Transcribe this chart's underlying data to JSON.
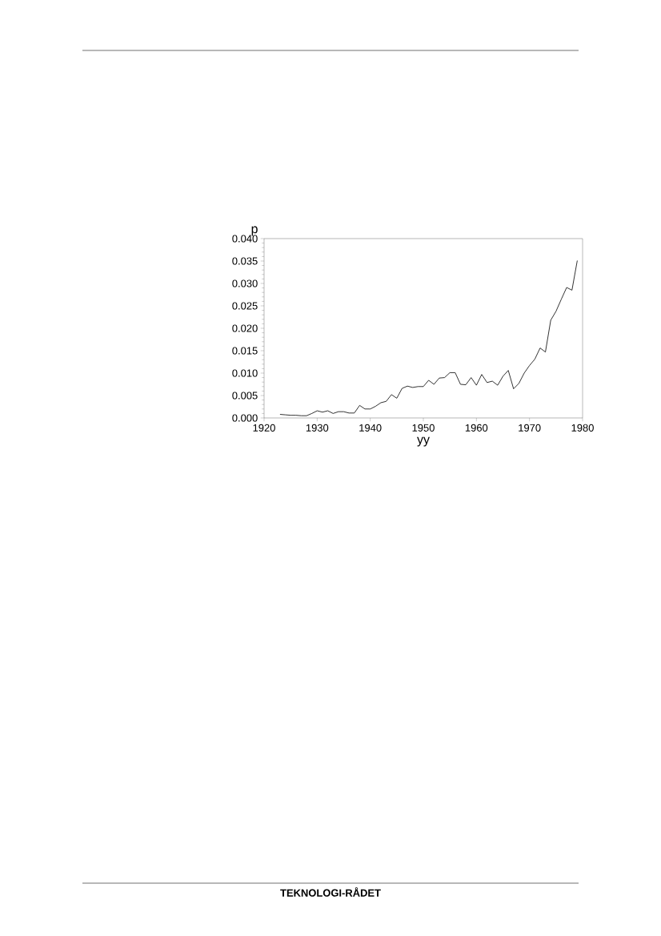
{
  "chart_data": {
    "type": "line",
    "xlabel": "yy",
    "ylabel": "p",
    "x": [
      1923,
      1924,
      1925,
      1926,
      1927,
      1928,
      1929,
      1930,
      1931,
      1932,
      1933,
      1934,
      1935,
      1936,
      1937,
      1938,
      1939,
      1940,
      1941,
      1942,
      1943,
      1944,
      1945,
      1946,
      1947,
      1948,
      1949,
      1950,
      1951,
      1952,
      1953,
      1954,
      1955,
      1956,
      1957,
      1958,
      1959,
      1960,
      1961,
      1962,
      1963,
      1964,
      1965,
      1966,
      1967,
      1968,
      1969,
      1970,
      1971,
      1972,
      1973,
      1974,
      1975,
      1976,
      1977,
      1978,
      1979
    ],
    "values": [
      0.0008,
      0.0007,
      0.0006,
      0.0006,
      0.0005,
      0.0005,
      0.001,
      0.0016,
      0.0013,
      0.0016,
      0.001,
      0.0014,
      0.0014,
      0.0011,
      0.0011,
      0.0028,
      0.002,
      0.002,
      0.0026,
      0.0034,
      0.0037,
      0.0052,
      0.0044,
      0.0066,
      0.0071,
      0.0068,
      0.007,
      0.007,
      0.0084,
      0.0075,
      0.0089,
      0.009,
      0.0101,
      0.0101,
      0.0075,
      0.0074,
      0.009,
      0.0073,
      0.0097,
      0.0079,
      0.0082,
      0.0073,
      0.0093,
      0.0106,
      0.0065,
      0.0077,
      0.01,
      0.0117,
      0.0131,
      0.0156,
      0.0147,
      0.0218,
      0.0238,
      0.0265,
      0.0291,
      0.0285,
      0.0351
    ],
    "color": "#000000",
    "xlim": [
      1920,
      1980
    ],
    "xticks": [
      1920,
      1930,
      1940,
      1950,
      1960,
      1970,
      1980
    ],
    "ylim": [
      0,
      0.04
    ],
    "yticks": [
      {
        "value": 0,
        "label": "0.000"
      },
      {
        "value": 0.005,
        "label": "0.005"
      },
      {
        "value": 0.01,
        "label": "0.010"
      },
      {
        "value": 0.015,
        "label": "0.015"
      },
      {
        "value": 0.02,
        "label": "0.020"
      },
      {
        "value": 0.025,
        "label": "0.025"
      },
      {
        "value": 0.03,
        "label": "0.030"
      },
      {
        "value": 0.035,
        "label": "0.035"
      },
      {
        "value": 0.04,
        "label": "0.040"
      }
    ],
    "grid": false,
    "marker": "none",
    "line_style": "solid",
    "annotations": [
      "TEKNOLOGI-RÅDET"
    ]
  }
}
